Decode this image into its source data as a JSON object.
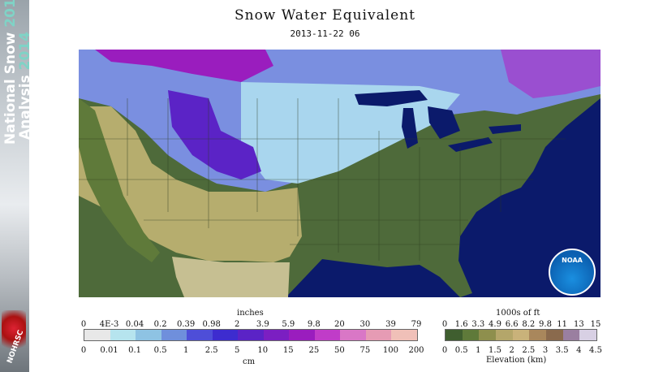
{
  "sidebar": {
    "line1": "National Snow",
    "year1": "2013-",
    "line2": "Analysis",
    "year2": "2014",
    "logo_text": "NOHRSC"
  },
  "title": "Snow Water Equivalent",
  "date": "2013-11-22 06",
  "logo": "NOAA",
  "legend_swe": {
    "top_unit": "inches",
    "bottom_unit": "cm",
    "inch_ticks": [
      "0",
      "4E-3",
      "0.04",
      "0.2",
      "0.39",
      "0.98",
      "2",
      "3.9",
      "5.9",
      "9.8",
      "20",
      "30",
      "39",
      "79"
    ],
    "cm_ticks": [
      "0",
      "0.01",
      "0.1",
      "0.5",
      "1",
      "2.5",
      "5",
      "10",
      "15",
      "25",
      "50",
      "75",
      "100",
      "200"
    ],
    "colors": [
      "#e8e8e8",
      "#b6e4ee",
      "#8ec3e3",
      "#6f8fdc",
      "#4e4ed8",
      "#3d2ccf",
      "#5b23c6",
      "#7b1fc2",
      "#9a1dbe",
      "#c03cc8",
      "#d977c6",
      "#e69bb4",
      "#f0c0b8"
    ]
  },
  "legend_elev": {
    "top_unit": "1000s of ft",
    "bottom_unit": "Elevation (km)",
    "ft_ticks": [
      "0",
      "1.6",
      "3.3",
      "4.9",
      "6.6",
      "8.2",
      "9.8",
      "11",
      "13",
      "15"
    ],
    "km_ticks": [
      "0",
      "0.5",
      "1",
      "1.5",
      "2",
      "2.5",
      "3",
      "3.5",
      "4",
      "4.5"
    ],
    "colors": [
      "#3f5e2f",
      "#5f7a3a",
      "#8e8f4d",
      "#b4a66a",
      "#c9b27a",
      "#a9875c",
      "#8a6a4d",
      "#9a7fa0",
      "#d8d0e4"
    ]
  }
}
